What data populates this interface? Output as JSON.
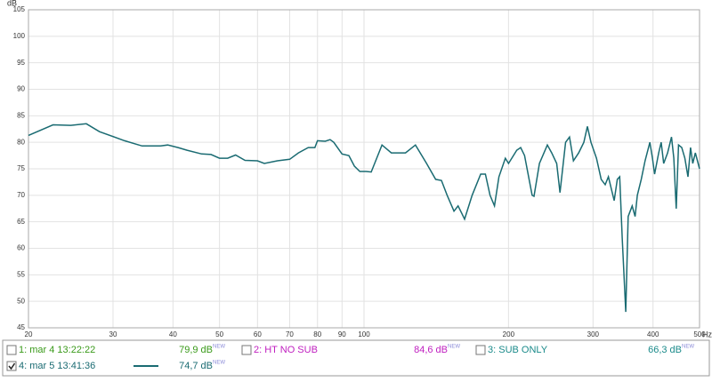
{
  "chart_data": {
    "type": "line",
    "x_label": "Hz",
    "y_label": "dB",
    "xscale": "log",
    "grid": true,
    "xlim": [
      20,
      500
    ],
    "xticks": [
      20,
      30,
      40,
      50,
      60,
      70,
      80,
      90,
      100,
      200,
      300,
      400,
      500
    ],
    "ylim": [
      45,
      105
    ],
    "yticks": [
      45,
      50,
      55,
      60,
      65,
      70,
      75,
      80,
      85,
      90,
      95,
      100,
      105
    ],
    "x": [
      20,
      22.5,
      24.5,
      26.4,
      28.1,
      31.7,
      34.5,
      37.7,
      39,
      41,
      42.8,
      45.9,
      48,
      50,
      52,
      54,
      56.5,
      60,
      62,
      66,
      70,
      73,
      76.5,
      79,
      80,
      83,
      85,
      86.5,
      90,
      93,
      95.5,
      98,
      101,
      103.5,
      109,
      114,
      122,
      128,
      135,
      141,
      145,
      149,
      154,
      157,
      160,
      162,
      168,
      175,
      179,
      183,
      187,
      191,
      197,
      200,
      208,
      212,
      216,
      224,
      226,
      232,
      241,
      246,
      252,
      256,
      263,
      268,
      273,
      280,
      287,
      292,
      297,
      305,
      312,
      318,
      323,
      328,
      332,
      337,
      341,
      345,
      351,
      355,
      362,
      367,
      371,
      378,
      385,
      394,
      399,
      403,
      411,
      416,
      421,
      429,
      437,
      442,
      447,
      452,
      459,
      466,
      473,
      479,
      484,
      490,
      500
    ],
    "series": [
      {
        "name": "4: mar 5 13:41:36",
        "color": "#1a6b72",
        "level": "74,7 dB",
        "checked": true,
        "values": [
          81.3,
          83.3,
          83.2,
          83.5,
          82.0,
          80.3,
          79.3,
          79.3,
          79.5,
          79.0,
          78.5,
          77.8,
          77.7,
          77.0,
          77.0,
          77.6,
          76.6,
          76.5,
          76.0,
          76.5,
          76.8,
          78.0,
          79.0,
          79.0,
          80.3,
          80.2,
          80.5,
          80.0,
          77.8,
          77.5,
          75.5,
          74.5,
          74.5,
          74.4,
          79.5,
          78.0,
          78.0,
          79.5,
          76.0,
          73.0,
          72.8,
          70.0,
          67.0,
          68.0,
          66.5,
          65.5,
          70.0,
          74.0,
          74.0,
          70.0,
          68.0,
          73.5,
          77.0,
          76.0,
          78.5,
          79.0,
          77.5,
          70.0,
          69.8,
          76.0,
          79.5,
          78.0,
          76.0,
          70.5,
          80.0,
          81.0,
          76.5,
          78.0,
          80.0,
          83.0,
          80.0,
          77.0,
          73.0,
          72.0,
          73.5,
          71.0,
          69.0,
          73.0,
          73.5,
          62.0,
          48.0,
          66.0,
          68.0,
          66.0,
          70.0,
          73.0,
          76.5,
          80.0,
          77.0,
          74.0,
          78.0,
          80.0,
          76.0,
          78.0,
          81.0,
          77.0,
          67.5,
          79.5,
          79.0,
          77.0,
          73.5,
          79.0,
          76.0,
          78.0,
          75.0
        ]
      }
    ]
  },
  "badge": "NEW",
  "legend": [
    {
      "label": "1: mar 4 13:22:22",
      "level": "79,9 dB",
      "color": "#3a9a1a",
      "checked": false
    },
    {
      "label": "2: HT NO SUB",
      "level": "84,6 dB",
      "color": "#c020c0",
      "checked": false
    },
    {
      "label": "3: SUB ONLY",
      "level": "66,3 dB",
      "color": "#1a8a8a",
      "checked": false
    }
  ]
}
